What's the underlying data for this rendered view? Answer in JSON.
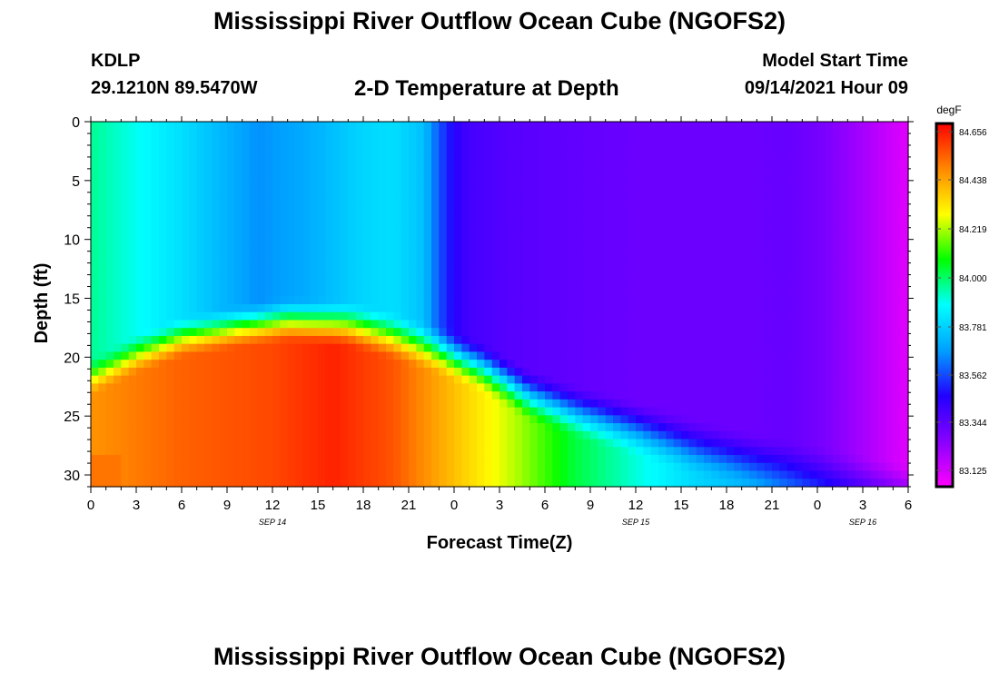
{
  "header": {
    "title": "Mississippi River Outflow Ocean Cube (NGOFS2)",
    "station_id": "KDLP",
    "station_coords": "29.1210N  89.5470W",
    "subtitle": "2-D Temperature at Depth",
    "model_start_label": "Model Start Time",
    "model_start_value": "09/14/2021 Hour 09"
  },
  "footer": {
    "title": "Mississippi River Outflow Ocean Cube (NGOFS2)"
  },
  "chart_data": {
    "type": "heatmap",
    "xlabel": "Forecast Time(Z)",
    "ylabel": "Depth (ft)",
    "x_range_hours": [
      0,
      54
    ],
    "y_range_ft": [
      0,
      31
    ],
    "y_inverted": true,
    "x_tick_labels": [
      "0",
      "3",
      "6",
      "9",
      "12",
      "15",
      "18",
      "21",
      "0",
      "3",
      "6",
      "9",
      "12",
      "15",
      "18",
      "21",
      "0",
      "3",
      "6"
    ],
    "y_ticks": [
      0,
      5,
      10,
      15,
      20,
      25,
      30
    ],
    "date_labels": [
      {
        "text": "SEP 14",
        "hour": 12
      },
      {
        "text": "SEP 15",
        "hour": 36
      },
      {
        "text": "SEP 16",
        "hour": 51
      }
    ],
    "colorbar": {
      "unit": "degF",
      "tick_labels": [
        "84.656",
        "84.438",
        "84.219",
        "84.000",
        "83.781",
        "83.562",
        "83.344",
        "83.125"
      ],
      "min": 83.05,
      "max": 84.73,
      "colors": [
        "#ff00ff",
        "#8800ff",
        "#2200ff",
        "#00a0ff",
        "#00ffff",
        "#00ff00",
        "#ffff00",
        "#ff8800",
        "#ff0000"
      ]
    },
    "temperature_regions": {
      "surface_warm_layer_hours": [
        0,
        22
      ],
      "surface_warm_layer_temp": [
        83.8,
        84.0
      ],
      "bottom_warm_core_temp": 84.6,
      "cold_upper_layer_hours": [
        24,
        53
      ],
      "cold_upper_layer_temp": [
        83.3,
        83.4
      ],
      "end_surface_temp": 83.1
    },
    "grid": false
  }
}
